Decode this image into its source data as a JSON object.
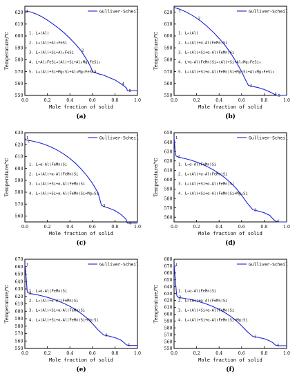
{
  "colors": {
    "curve": "#1a22d6",
    "axis": "#000000",
    "text": "#000000",
    "background": "#ffffff"
  },
  "chart_data": [
    {
      "type": "line",
      "panel_label": "(a)",
      "xlabel": "Mole fraction of solid",
      "ylabel": "Temperature/℃",
      "xlim": [
        0.0,
        1.0
      ],
      "ylim": [
        550,
        625
      ],
      "xticks": [
        0.0,
        0.2,
        0.4,
        0.6,
        0.8,
        1.0
      ],
      "yticks": [
        550,
        560,
        570,
        580,
        590,
        600,
        610,
        620
      ],
      "legend": "Gulliver-Scheil",
      "legend_position": "top-right",
      "grid": false,
      "series": [
        {
          "name": "Gulliver-Scheil",
          "x": [
            0.0,
            0.05,
            0.1,
            0.15,
            0.2,
            0.25,
            0.3,
            0.35,
            0.4,
            0.45,
            0.5,
            0.55,
            0.585,
            0.6,
            0.63,
            0.66,
            0.7,
            0.75,
            0.8,
            0.85,
            0.88,
            0.905,
            0.91,
            0.93,
            1.0
          ],
          "y": [
            621,
            620.2,
            618.5,
            616.2,
            613.3,
            610,
            606.5,
            602.5,
            598,
            593,
            587.5,
            580,
            574,
            570,
            569,
            568,
            567,
            565,
            563,
            560,
            558,
            556,
            554,
            554,
            554
          ]
        }
      ],
      "points": [
        {
          "label": "1",
          "x": 0.0,
          "y": 621
        },
        {
          "label": "2",
          "x": 0.49,
          "y": 588
        },
        {
          "label": "3",
          "x": 0.6,
          "y": 570
        },
        {
          "label": "4",
          "x": 0.85,
          "y": 560
        },
        {
          "label": "5",
          "x": 0.91,
          "y": 554
        }
      ],
      "reactions": [
        "1. L→(Al)",
        "2. L→(Al)+Al₃FeSi",
        "3. L→(Al)+Si+Al₃FeSi",
        "4. L+Al₃FeSi→(Al)+Si+Al₈Mg₃FeSi₆",
        "5. L→(Al)+Si+Mg₂Si+Al₈Mg₃FeSi₆"
      ]
    },
    {
      "type": "line",
      "panel_label": "(b)",
      "xlabel": "Mole fraction of solid",
      "ylabel": "Temperature/℃",
      "xlim": [
        0.0,
        1.0
      ],
      "ylim": [
        550,
        625
      ],
      "xticks": [
        0.0,
        0.2,
        0.4,
        0.6,
        0.8,
        1.0
      ],
      "yticks": [
        550,
        560,
        570,
        580,
        590,
        600,
        610,
        620
      ],
      "legend": "Gulliver-Scheil",
      "legend_position": "top-right",
      "grid": false,
      "series": [
        {
          "name": "Gulliver-Scheil",
          "x": [
            0.0,
            0.05,
            0.1,
            0.15,
            0.2,
            0.25,
            0.3,
            0.35,
            0.4,
            0.45,
            0.5,
            0.55,
            0.6,
            0.635,
            0.66,
            0.7,
            0.75,
            0.8,
            0.85,
            0.88,
            0.9,
            0.91,
            0.95,
            1.0
          ],
          "y": [
            624,
            622.5,
            620.5,
            618,
            615,
            611.5,
            607.5,
            603,
            598,
            592.5,
            586,
            578.5,
            570,
            563,
            558.5,
            557.5,
            556.5,
            555,
            553,
            551.5,
            550.5,
            550,
            550,
            550
          ]
        }
      ],
      "points": [
        {
          "label": "1",
          "x": 0.03,
          "y": 621
        },
        {
          "label": "2",
          "x": 0.2,
          "y": 615
        },
        {
          "label": "3",
          "x": 0.66,
          "y": 558.5
        },
        {
          "label": "4",
          "x": 0.88,
          "y": 551.5
        },
        {
          "label": "5",
          "x": 0.91,
          "y": 550
        }
      ],
      "reactions": [
        "1. L→(Al)",
        "2. L→(Al)+α-Al(FeMn)Si",
        "3. L→(Al)+Si+α-Al(FeMn)Si",
        "4. L+α-Al(FeMn)Si→(Al)+Si+Al₈Mg₃FeSi₆",
        "5. L→(Al)+Si+α-Al(FeMn)Si+Mg₂Si+Al₈Mg₃FeSi₆"
      ]
    },
    {
      "type": "line",
      "panel_label": "(c)",
      "xlabel": "Mole fraction of solid",
      "ylabel": "Temperature/℃",
      "xlim": [
        0.0,
        1.0
      ],
      "ylim": [
        555,
        630
      ],
      "xticks": [
        0.0,
        0.2,
        0.4,
        0.6,
        0.8,
        1.0
      ],
      "yticks": [
        560,
        570,
        580,
        590,
        600,
        610,
        620,
        630
      ],
      "legend": "Gulliver-Scheil",
      "legend_position": "top-right",
      "grid": false,
      "series": [
        {
          "name": "Gulliver-Scheil",
          "x": [
            0.0,
            0.01,
            0.05,
            0.1,
            0.15,
            0.2,
            0.25,
            0.3,
            0.35,
            0.4,
            0.45,
            0.5,
            0.55,
            0.6,
            0.65,
            0.68,
            0.7,
            0.75,
            0.8,
            0.85,
            0.88,
            0.9,
            0.91,
            0.95,
            1.0
          ],
          "y": [
            625.5,
            624,
            623.3,
            622.3,
            621,
            619.3,
            617.2,
            614.7,
            611.8,
            608.3,
            604.3,
            599.5,
            594,
            587.5,
            579.5,
            569,
            568,
            566.5,
            564.5,
            561.5,
            559,
            557,
            554,
            554,
            554
          ]
        }
      ],
      "points": [
        {
          "label": "1",
          "x": 0.0,
          "y": 626
        },
        {
          "label": "2",
          "x": 0.01,
          "y": 623
        },
        {
          "label": "3",
          "x": 0.68,
          "y": 569
        },
        {
          "label": "4",
          "x": 0.91,
          "y": 554
        }
      ],
      "reactions": [
        "1. L→α-Al(FeMn)Si",
        "2. L→(Al)+α-Al(FeMn)Si",
        "3. L→(Al)+Si+α-Al(FeMn)Si",
        "4. L→(Al)+Si+α-Al(FeMn)Si+Mg₂Si"
      ]
    },
    {
      "type": "line",
      "panel_label": "(d)",
      "xlabel": "Mole fraction of solid",
      "ylabel": "Temperature/℃",
      "xlim": [
        0.0,
        1.0
      ],
      "ylim": [
        555,
        650
      ],
      "xticks": [
        0.0,
        0.2,
        0.4,
        0.6,
        0.8,
        1.0
      ],
      "yticks": [
        560,
        570,
        580,
        590,
        600,
        610,
        620,
        630,
        640,
        650
      ],
      "legend": "Gulliver-Scheil",
      "legend_position": "top-right",
      "grid": false,
      "series": [
        {
          "name": "Gulliver-Scheil",
          "x": [
            0.0,
            0.005,
            0.01,
            0.015,
            0.02,
            0.05,
            0.1,
            0.15,
            0.2,
            0.25,
            0.3,
            0.35,
            0.4,
            0.45,
            0.5,
            0.55,
            0.6,
            0.65,
            0.7,
            0.75,
            0.8,
            0.85,
            0.88,
            0.9,
            0.92,
            0.95,
            1.0
          ],
          "y": [
            645,
            638,
            630,
            626,
            625,
            623.7,
            622.4,
            620.8,
            618.8,
            616.4,
            613.6,
            610.4,
            606.6,
            602.2,
            597,
            591,
            583.5,
            575,
            568,
            566.5,
            564.8,
            562,
            558,
            556,
            555,
            555,
            555
          ]
        }
      ],
      "points": [
        {
          "label": "1",
          "x": 0.0,
          "y": 645
        },
        {
          "label": "2",
          "x": 0.02,
          "y": 625
        },
        {
          "label": "3",
          "x": 0.7,
          "y": 568
        },
        {
          "label": "4",
          "x": 0.9,
          "y": 556
        }
      ],
      "reactions": [
        "1. L→α-Al(FeMn)Si",
        "2. L→(Al)+α-Al(FeMn)Si",
        "3. L→(Al)+Si+α-Al(FeMn)Si",
        "4. L→(Al)+Si+α-Al(FeMn)Si+Mg₂Si"
      ]
    },
    {
      "type": "line",
      "panel_label": "(e)",
      "xlabel": "Mole fraction of solid",
      "ylabel": "Temperature/℃",
      "xlim": [
        0.0,
        1.0
      ],
      "ylim": [
        550,
        670
      ],
      "xticks": [
        0.0,
        0.2,
        0.4,
        0.6,
        0.8,
        1.0
      ],
      "yticks": [
        550,
        560,
        570,
        580,
        590,
        600,
        610,
        620,
        630,
        640,
        650,
        660,
        670
      ],
      "legend": "Gulliver-Scheil",
      "legend_position": "top-right",
      "grid": false,
      "series": [
        {
          "name": "Gulliver-Scheil",
          "x": [
            0.0,
            0.005,
            0.01,
            0.015,
            0.02,
            0.025,
            0.05,
            0.1,
            0.15,
            0.2,
            0.25,
            0.3,
            0.35,
            0.4,
            0.45,
            0.5,
            0.55,
            0.6,
            0.65,
            0.7,
            0.75,
            0.8,
            0.85,
            0.88,
            0.9,
            0.92,
            0.95,
            1.0
          ],
          "y": [
            663,
            657,
            648,
            638,
            628,
            625,
            623.8,
            622.5,
            620.8,
            618.8,
            616.4,
            613.6,
            610.4,
            606.6,
            602.2,
            597,
            591,
            583.5,
            575,
            568,
            566.5,
            564.5,
            561.5,
            558,
            555,
            554,
            554,
            554
          ]
        }
      ],
      "points": [
        {
          "label": "1",
          "x": 0.0,
          "y": 663
        },
        {
          "label": "2",
          "x": 0.025,
          "y": 625
        },
        {
          "label": "3",
          "x": 0.7,
          "y": 568
        },
        {
          "label": "4",
          "x": 0.9,
          "y": 555
        }
      ],
      "reactions": [
        "1. L→α-Al(FeMn)Si",
        "2. L→(Al)+α-Al(FeMn)Si",
        "3. L→(Al)+Si+α-Al(FeMn)Si",
        "4. L→(Al)+Si+α-Al(FeMn)Si+Mg₂Si"
      ]
    },
    {
      "type": "line",
      "panel_label": "(f)",
      "xlabel": "Mole fraction of solid",
      "ylabel": "Temperature/℃",
      "xlim": [
        0.0,
        1.0
      ],
      "ylim": [
        550,
        680
      ],
      "xticks": [
        0.0,
        0.2,
        0.4,
        0.6,
        0.8,
        1.0
      ],
      "yticks": [
        550,
        560,
        570,
        580,
        590,
        600,
        610,
        620,
        630,
        640,
        650,
        660,
        670,
        680
      ],
      "legend": "Gulliver-Scheil",
      "legend_position": "top-right",
      "grid": false,
      "series": [
        {
          "name": "Gulliver-Scheil",
          "x": [
            0.0,
            0.005,
            0.01,
            0.015,
            0.02,
            0.025,
            0.03,
            0.05,
            0.1,
            0.15,
            0.2,
            0.25,
            0.3,
            0.35,
            0.4,
            0.45,
            0.5,
            0.55,
            0.6,
            0.65,
            0.7,
            0.75,
            0.8,
            0.85,
            0.88,
            0.9,
            0.92,
            0.95,
            1.0
          ],
          "y": [
            672,
            663,
            653,
            643,
            633,
            627,
            625,
            624,
            622.8,
            621.2,
            619.2,
            616.8,
            614,
            610.7,
            606.9,
            602.4,
            597,
            590.8,
            583,
            574.5,
            567.5,
            566,
            564.2,
            561,
            558,
            555,
            554,
            554,
            554
          ]
        }
      ],
      "points": [
        {
          "label": "1",
          "x": 0.0,
          "y": 672
        },
        {
          "label": "2",
          "x": 0.03,
          "y": 625
        },
        {
          "label": "3",
          "x": 0.7,
          "y": 567.5
        },
        {
          "label": "4",
          "x": 0.9,
          "y": 555
        }
      ],
      "reactions": [
        "1. L→α-Al(FeMn)Si",
        "2. L→(Al)+α-Al(FeMn)Si",
        "3. L→(Al)+Si+α-Al(FeMn)Si",
        "4. L→(Al)+Si+α-Al(FeMn)Si+Mg₂Si"
      ]
    }
  ]
}
